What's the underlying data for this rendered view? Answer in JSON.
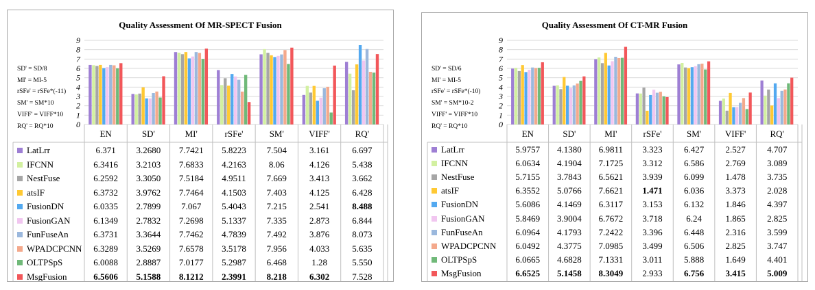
{
  "chart_data": [
    {
      "type": "bar",
      "title": "Quality Assessment Of MR-SPECT Fusion",
      "notes": [
        "SD' = SD/8",
        "MI' = MI-5",
        "rSFe' = rSFe*(-11)",
        "SM' = SM*10",
        "VIFF' = VIFF*10",
        "RQ' = RQ*10"
      ],
      "categories": [
        "EN",
        "SD'",
        "MI'",
        "rSFe'",
        "SM'",
        "VIFF'",
        "RQ'"
      ],
      "ylim": [
        0,
        9
      ],
      "yticks": [
        "0",
        "1",
        "2",
        "3",
        "4",
        "5",
        "6",
        "7",
        "8",
        "9"
      ],
      "series": [
        {
          "name": "LatLrr",
          "values": [
            6.371,
            3.268,
            7.7421,
            5.8223,
            7.504,
            3.161,
            6.697
          ],
          "labels": [
            "6.371",
            "3.2680",
            "7.7421",
            "5.8223",
            "7.504",
            "3.161",
            "6.697"
          ],
          "bold": []
        },
        {
          "name": "IFCNN",
          "values": [
            6.3416,
            3.2103,
            7.6833,
            4.2163,
            8.06,
            4.126,
            5.438
          ],
          "labels": [
            "6.3416",
            "3.2103",
            "7.6833",
            "4.2163",
            "8.06",
            "4.126",
            "5.438"
          ],
          "bold": []
        },
        {
          "name": "NestFuse",
          "values": [
            6.2592,
            3.305,
            7.5184,
            4.9511,
            7.669,
            3.413,
            3.662
          ],
          "labels": [
            "6.2592",
            "3.3050",
            "7.5184",
            "4.9511",
            "7.669",
            "3.413",
            "3.662"
          ],
          "bold": []
        },
        {
          "name": "atsIF",
          "values": [
            6.3732,
            3.9762,
            7.7464,
            4.1503,
            7.403,
            4.125,
            6.428
          ],
          "labels": [
            "6.3732",
            "3.9762",
            "7.7464",
            "4.1503",
            "7.403",
            "4.125",
            "6.428"
          ],
          "bold": []
        },
        {
          "name": "FusionDN",
          "values": [
            6.0335,
            2.7899,
            7.067,
            5.4043,
            7.215,
            2.541,
            8.488
          ],
          "labels": [
            "6.0335",
            "2.7899",
            "7.067",
            "5.4043",
            "7.215",
            "2.541",
            "8.488"
          ],
          "bold": [
            6
          ]
        },
        {
          "name": "FusionGAN",
          "values": [
            6.1349,
            2.7832,
            7.2698,
            5.1337,
            7.335,
            2.873,
            6.844
          ],
          "labels": [
            "6.1349",
            "2.7832",
            "7.2698",
            "5.1337",
            "7.335",
            "2.873",
            "6.844"
          ],
          "bold": []
        },
        {
          "name": "FunFuseAn",
          "values": [
            6.3731,
            3.3644,
            7.7462,
            4.7839,
            7.492,
            3.876,
            8.073
          ],
          "labels": [
            "6.3731",
            "3.3644",
            "7.7462",
            "4.7839",
            "7.492",
            "3.876",
            "8.073"
          ],
          "bold": []
        },
        {
          "name": "WPADCPCNN",
          "values": [
            6.3289,
            3.5269,
            7.6578,
            3.5178,
            7.956,
            4.033,
            5.635
          ],
          "labels": [
            "6.3289",
            "3.5269",
            "7.6578",
            "3.5178",
            "7.956",
            "4.033",
            "5.635"
          ],
          "bold": []
        },
        {
          "name": "OLTPSpS",
          "values": [
            6.0088,
            2.8887,
            7.0177,
            5.2987,
            6.468,
            1.28,
            5.55
          ],
          "labels": [
            "6.0088",
            "2.8887",
            "7.0177",
            "5.2987",
            "6.468",
            "1.28",
            "5.550"
          ],
          "bold": []
        },
        {
          "name": "MsgFusion",
          "values": [
            6.5606,
            5.1588,
            8.1212,
            2.3991,
            8.218,
            6.302,
            7.528
          ],
          "labels": [
            "6.5606",
            "5.1588",
            "8.1212",
            "2.3991",
            "8.218",
            "6.302",
            "7.528"
          ],
          "bold": [
            0,
            1,
            2,
            3,
            4,
            5
          ]
        }
      ]
    },
    {
      "type": "bar",
      "title": "Quality  Assessment Of CT-MR Fusion",
      "notes": [
        "SD' = SD/6",
        "MI' = MI-5",
        "rSFe' = rSFe*(-10)",
        "SM' = SM*10-2",
        "VIFF' = VIFF*10",
        "RQ' = RQ*10"
      ],
      "categories": [
        "EN",
        "SD'",
        "MI'",
        "rSFe'",
        "SM'",
        "VIFF'",
        "RQ'"
      ],
      "ylim": [
        0,
        9
      ],
      "yticks": [
        "0",
        "1",
        "2",
        "3",
        "4",
        "5",
        "6",
        "7",
        "8",
        "9"
      ],
      "series": [
        {
          "name": "LatLrr",
          "values": [
            5.9757,
            4.138,
            6.9811,
            3.323,
            6.427,
            2.527,
            4.707
          ],
          "labels": [
            "5.9757",
            "4.1380",
            "6.9811",
            "3.323",
            "6.427",
            "2.527",
            "4.707"
          ],
          "bold": []
        },
        {
          "name": "IFCNN",
          "values": [
            6.0634,
            4.1904,
            7.1725,
            3.312,
            6.586,
            2.769,
            3.089
          ],
          "labels": [
            "6.0634",
            "4.1904",
            "7.1725",
            "3.312",
            "6.586",
            "2.769",
            "3.089"
          ],
          "bold": []
        },
        {
          "name": "NestFuse",
          "values": [
            5.7155,
            3.7843,
            6.5621,
            3.939,
            6.099,
            1.478,
            3.735
          ],
          "labels": [
            "5.7155",
            "3.7843",
            "6.5621",
            "3.939",
            "6.099",
            "1.478",
            "3.735"
          ],
          "bold": []
        },
        {
          "name": "atsIF",
          "values": [
            6.3552,
            5.0766,
            7.6621,
            1.471,
            6.036,
            3.373,
            2.028
          ],
          "labels": [
            "6.3552",
            "5.0766",
            "7.6621",
            "1.471",
            "6.036",
            "3.373",
            "2.028"
          ],
          "bold": [
            3
          ]
        },
        {
          "name": "FusionDN",
          "values": [
            5.6086,
            4.1469,
            6.3117,
            3.153,
            6.132,
            1.846,
            4.397
          ],
          "labels": [
            "5.6086",
            "4.1469",
            "6.3117",
            "3.153",
            "6.132",
            "1.846",
            "4.397"
          ],
          "bold": []
        },
        {
          "name": "FusionGAN",
          "values": [
            5.8469,
            3.9004,
            6.7672,
            3.718,
            6.24,
            1.865,
            2.825
          ],
          "labels": [
            "5.8469",
            "3.9004",
            "6.7672",
            "3.718",
            "6.24",
            "1.865",
            "2.825"
          ],
          "bold": []
        },
        {
          "name": "FunFuseAn",
          "values": [
            6.0964,
            4.1793,
            7.2422,
            3.396,
            6.448,
            2.316,
            3.599
          ],
          "labels": [
            "6.0964",
            "4.1793",
            "7.2422",
            "3.396",
            "6.448",
            "2.316",
            "3.599"
          ],
          "bold": []
        },
        {
          "name": "WPADCPCNN",
          "values": [
            6.0492,
            4.3775,
            7.0985,
            3.499,
            6.506,
            2.825,
            3.747
          ],
          "labels": [
            "6.0492",
            "4.3775",
            "7.0985",
            "3.499",
            "6.506",
            "2.825",
            "3.747"
          ],
          "bold": []
        },
        {
          "name": "OLTPSpS",
          "values": [
            6.0665,
            4.6828,
            7.1331,
            3.011,
            5.888,
            1.649,
            4.401
          ],
          "labels": [
            "6.0665",
            "4.6828",
            "7.1331",
            "3.011",
            "5.888",
            "1.649",
            "4.401"
          ],
          "bold": []
        },
        {
          "name": "MsgFusion",
          "values": [
            6.6525,
            5.1458,
            8.3049,
            2.933,
            6.756,
            3.415,
            5.009
          ],
          "labels": [
            "6.6525",
            "5.1458",
            "8.3049",
            "2.933",
            "6.756",
            "3.415",
            "5.009"
          ],
          "bold": [
            0,
            1,
            2,
            4,
            5,
            6
          ]
        }
      ]
    }
  ],
  "colors": [
    "#9e7fd4",
    "#d2f0a0",
    "#a6a6a6",
    "#ffc933",
    "#53a9f0",
    "#f1c6f0",
    "#9bb8dd",
    "#f4a98c",
    "#70b979",
    "#f2575a"
  ]
}
